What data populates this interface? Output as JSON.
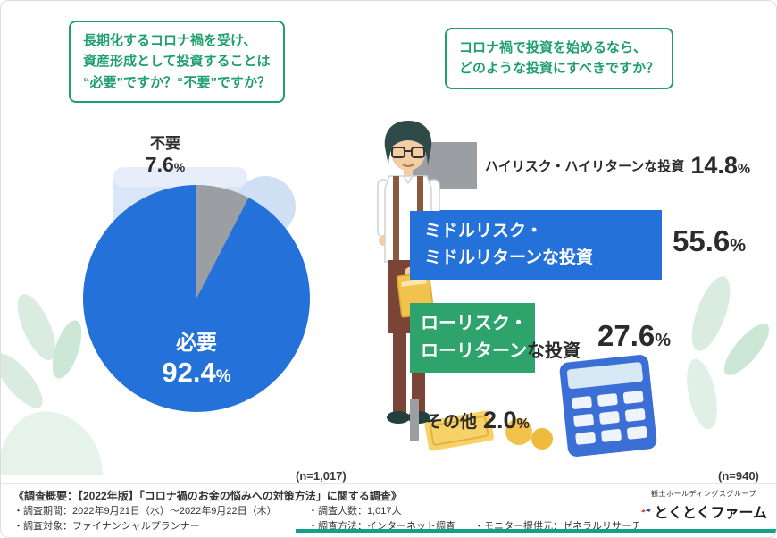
{
  "percent_sign": "%",
  "colors": {
    "green": "#1f9f6d",
    "blue": "#2471da",
    "gray": "#9b9fa4",
    "bar_green": "#2ea36c",
    "dark": "#2b2b2b",
    "teal_line": "#11a187"
  },
  "questions": {
    "left": {
      "line1": "長期化するコロナ禍を受け、",
      "line2": "資産形成として投資することは",
      "line3": "“必要”ですか？“不要”ですか？"
    },
    "right": {
      "line1": "コロナ禍で投資を始めるなら、",
      "line2": "どのような投資にすべきですか？"
    }
  },
  "pie": {
    "slice_no": {
      "label": "不要",
      "value": "7.6"
    },
    "slice_yes": {
      "label": "必要",
      "value": "92.4"
    },
    "n": "(n=1,017)"
  },
  "bars": {
    "row1": {
      "label": "ハイリスク・ハイリターンな投資",
      "value": "14.8"
    },
    "row2": {
      "line1": "ミドルリスク・",
      "line2": "ミドルリターンな投資",
      "value": "55.6"
    },
    "row3": {
      "line1": "ローリスク・",
      "line2_inside": "ローリターン",
      "line2_outside": "な投資",
      "value": "27.6"
    },
    "row4": {
      "label": "その他",
      "value": "2.0"
    },
    "n": "(n=940)"
  },
  "footer": {
    "line1": "《調査概要：【2022年版】「コロナ禍のお金の悩みへの対策方法」に関する調査》",
    "period": "・調査期間：2022年9月21日（水）～2022年9月22日（木）",
    "people": "・調査人数：1,017人",
    "target": "・調査対象：ファイナンシャルプランナー",
    "method": "・調査方法：インターネット調査",
    "monitor": "・モニター提供元：ゼネラルリサーチ"
  },
  "logo": {
    "group": "観土ホールディングスグループ",
    "name": "とくとくファーム"
  },
  "chart_data": [
    {
      "type": "pie",
      "title": "長期化するコロナ禍を受け、資産形成として投資することは“必要”ですか？“不要”ですか？",
      "labels": [
        "必要",
        "不要"
      ],
      "values": [
        92.4,
        7.6
      ],
      "colors": [
        "#2471da",
        "#9b9fa4"
      ],
      "sample": "(n=1,017)",
      "legend_position": "inside"
    },
    {
      "type": "bar",
      "orientation": "horizontal",
      "title": "コロナ禍で投資を始めるなら、どのような投資にすべきですか？",
      "categories": [
        "ハイリスク・ハイリターンな投資",
        "ミドルリスク・ミドルリターンな投資",
        "ローリスク・ローリターンな投資",
        "その他"
      ],
      "values": [
        14.8,
        55.6,
        27.6,
        2.0
      ],
      "colors": [
        "#9b9fa4",
        "#2471da",
        "#2ea36c",
        "#9b9fa4"
      ],
      "xlim": [
        0,
        100
      ],
      "grid": false,
      "sample": "(n=940)"
    }
  ]
}
